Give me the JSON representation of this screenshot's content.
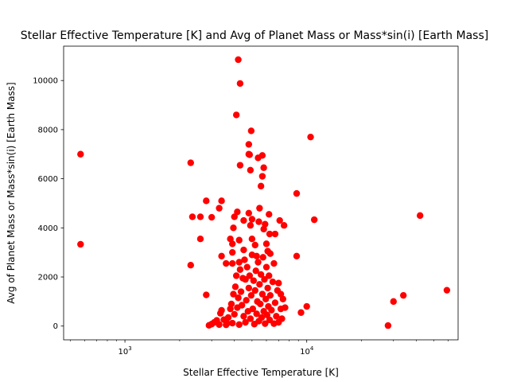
{
  "chart_data": {
    "type": "scatter",
    "title": "Stellar Effective Temperature [K] and Avg of Planet Mass or Mass*sin(i) [Earth Mass]",
    "xlabel": "Stellar Effective Temperature [K]",
    "ylabel": "Avg of Planet Mass or Mass*sin(i) [Earth Mass]",
    "x_scale": "log",
    "xlim": [
      460,
      68000
    ],
    "ylim": [
      -560,
      11400
    ],
    "x_ticks": [
      {
        "value": 1000,
        "label": "10",
        "exp": "3"
      },
      {
        "value": 10000,
        "label": "10",
        "exp": "4"
      }
    ],
    "y_ticks": [
      0,
      2000,
      4000,
      6000,
      8000,
      10000
    ],
    "marker_color": "#ff0000",
    "grid": false,
    "legend": "none",
    "points": [
      [
        570,
        7000
      ],
      [
        570,
        3330
      ],
      [
        2300,
        6650
      ],
      [
        2300,
        2480
      ],
      [
        2350,
        4450
      ],
      [
        2600,
        4450
      ],
      [
        2600,
        3550
      ],
      [
        2800,
        5100
      ],
      [
        2800,
        1270
      ],
      [
        3000,
        4430
      ],
      [
        3300,
        4800
      ],
      [
        3400,
        5100
      ],
      [
        3400,
        2850
      ],
      [
        3600,
        2550
      ],
      [
        3800,
        3550
      ],
      [
        3900,
        3350
      ],
      [
        3900,
        2550
      ],
      [
        3900,
        3000
      ],
      [
        3950,
        4000
      ],
      [
        4000,
        4450
      ],
      [
        4100,
        8600
      ],
      [
        4150,
        4650
      ],
      [
        4200,
        10850
      ],
      [
        4250,
        2600
      ],
      [
        4250,
        3500
      ],
      [
        4300,
        9880
      ],
      [
        4300,
        6550
      ],
      [
        4500,
        4300
      ],
      [
        4500,
        3100
      ],
      [
        4600,
        1900
      ],
      [
        4800,
        7400
      ],
      [
        4800,
        4600
      ],
      [
        4800,
        7000
      ],
      [
        4850,
        6980
      ],
      [
        4900,
        6350
      ],
      [
        4900,
        4100
      ],
      [
        4950,
        7950
      ],
      [
        5000,
        4350
      ],
      [
        5000,
        3550
      ],
      [
        5200,
        3300
      ],
      [
        5300,
        2850
      ],
      [
        5400,
        6850
      ],
      [
        5450,
        4250
      ],
      [
        5500,
        4800
      ],
      [
        5600,
        5700
      ],
      [
        5700,
        6100
      ],
      [
        5700,
        6950
      ],
      [
        5800,
        6450
      ],
      [
        5800,
        3950
      ],
      [
        5900,
        4150
      ],
      [
        6000,
        3350
      ],
      [
        6100,
        3050
      ],
      [
        6200,
        4550
      ],
      [
        6250,
        3750
      ],
      [
        6300,
        2950
      ],
      [
        6600,
        2550
      ],
      [
        6700,
        3750
      ],
      [
        7000,
        1750
      ],
      [
        7100,
        4300
      ],
      [
        7200,
        1300
      ],
      [
        7400,
        1100
      ],
      [
        7500,
        4100
      ],
      [
        7600,
        750
      ],
      [
        8800,
        5400
      ],
      [
        8800,
        2850
      ],
      [
        9300,
        550
      ],
      [
        10000,
        800
      ],
      [
        10500,
        7700
      ],
      [
        11000,
        4330
      ],
      [
        28000,
        20
      ],
      [
        30000,
        1000
      ],
      [
        34000,
        1250
      ],
      [
        42000,
        4500
      ],
      [
        59000,
        1460
      ],
      [
        2900,
        30
      ],
      [
        3000,
        80
      ],
      [
        3100,
        150
      ],
      [
        3200,
        230
      ],
      [
        3300,
        60
      ],
      [
        3350,
        520
      ],
      [
        3400,
        640
      ],
      [
        3500,
        260
      ],
      [
        3600,
        50
      ],
      [
        3650,
        110
      ],
      [
        3700,
        350
      ],
      [
        3800,
        700
      ],
      [
        3850,
        900
      ],
      [
        3900,
        120
      ],
      [
        3950,
        1300
      ],
      [
        4000,
        480
      ],
      [
        4050,
        1600
      ],
      [
        4100,
        2050
      ],
      [
        4150,
        750
      ],
      [
        4200,
        1150
      ],
      [
        4250,
        60
      ],
      [
        4300,
        2300
      ],
      [
        4350,
        1400
      ],
      [
        4400,
        850
      ],
      [
        4450,
        1950
      ],
      [
        4500,
        400
      ],
      [
        4550,
        2700
      ],
      [
        4600,
        150
      ],
      [
        4650,
        1050
      ],
      [
        4700,
        2400
      ],
      [
        4750,
        600
      ],
      [
        4800,
        1550
      ],
      [
        4850,
        2050
      ],
      [
        4900,
        300
      ],
      [
        4950,
        1250
      ],
      [
        5000,
        2900
      ],
      [
        5050,
        700
      ],
      [
        5100,
        1850
      ],
      [
        5150,
        80
      ],
      [
        5200,
        1450
      ],
      [
        5250,
        2250
      ],
      [
        5300,
        500
      ],
      [
        5350,
        1000
      ],
      [
        5400,
        2600
      ],
      [
        5450,
        200
      ],
      [
        5500,
        1700
      ],
      [
        5550,
        900
      ],
      [
        5600,
        2100
      ],
      [
        5650,
        350
      ],
      [
        5700,
        1300
      ],
      [
        5750,
        2800
      ],
      [
        5800,
        600
      ],
      [
        5850,
        1900
      ],
      [
        5900,
        100
      ],
      [
        5950,
        1100
      ],
      [
        6000,
        2400
      ],
      [
        6050,
        450
      ],
      [
        6100,
        1550
      ],
      [
        6150,
        800
      ],
      [
        6200,
        2050
      ],
      [
        6250,
        250
      ],
      [
        6300,
        1250
      ],
      [
        6400,
        650
      ],
      [
        6500,
        1800
      ],
      [
        6600,
        100
      ],
      [
        6700,
        950
      ],
      [
        6800,
        400
      ],
      [
        6900,
        1450
      ],
      [
        7000,
        150
      ],
      [
        7200,
        700
      ],
      [
        7300,
        300
      ]
    ]
  }
}
